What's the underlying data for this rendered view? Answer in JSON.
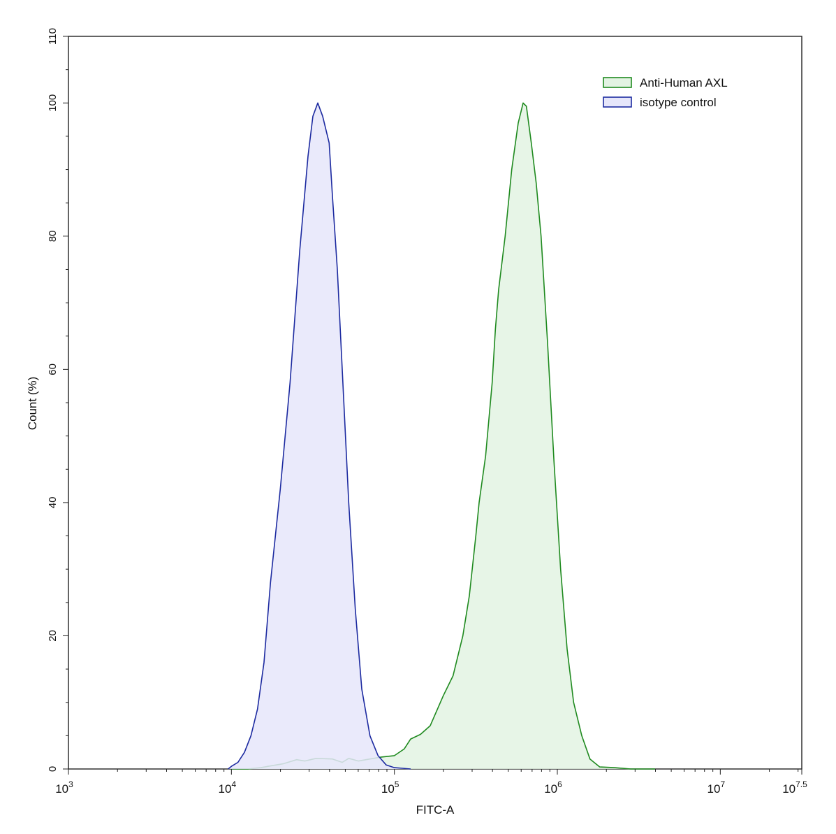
{
  "chart_data": {
    "type": "area",
    "title": "",
    "xlabel": "FITC-A",
    "ylabel": "Count  (%)",
    "x_scale": "log10",
    "xlim": [
      3,
      7.5
    ],
    "ylim": [
      0,
      110
    ],
    "x_ticks": [
      {
        "base": "10",
        "exp": "3",
        "value": 3
      },
      {
        "base": "10",
        "exp": "4",
        "value": 4
      },
      {
        "base": "10",
        "exp": "5",
        "value": 5
      },
      {
        "base": "10",
        "exp": "6",
        "value": 6
      },
      {
        "base": "10",
        "exp": "7",
        "value": 7
      },
      {
        "base": "10",
        "exp": "7.5",
        "value": 7.5
      }
    ],
    "y_ticks": [
      "0",
      "20",
      "40",
      "60",
      "80",
      "100",
      "110"
    ],
    "legend_position": "top-right",
    "grid": false,
    "series": [
      {
        "name": "Anti-Human AXL",
        "stroke": "#1f8a1f",
        "fill": "#e3f3e3",
        "points": [
          [
            4.0,
            0
          ],
          [
            4.1,
            0
          ],
          [
            4.18,
            0.2
          ],
          [
            4.25,
            0.5
          ],
          [
            4.32,
            0.8
          ],
          [
            4.4,
            1.4
          ],
          [
            4.45,
            1.2
          ],
          [
            4.52,
            1.6
          ],
          [
            4.62,
            1.5
          ],
          [
            4.68,
            1.0
          ],
          [
            4.72,
            1.6
          ],
          [
            4.78,
            1.2
          ],
          [
            4.85,
            1.5
          ],
          [
            4.92,
            1.8
          ],
          [
            5.0,
            2.0
          ],
          [
            5.06,
            3.0
          ],
          [
            5.1,
            4.5
          ],
          [
            5.16,
            5.2
          ],
          [
            5.22,
            6.5
          ],
          [
            5.3,
            11
          ],
          [
            5.36,
            14
          ],
          [
            5.42,
            20
          ],
          [
            5.46,
            26
          ],
          [
            5.5,
            35
          ],
          [
            5.52,
            40
          ],
          [
            5.56,
            47
          ],
          [
            5.6,
            58
          ],
          [
            5.62,
            66
          ],
          [
            5.64,
            72
          ],
          [
            5.68,
            80
          ],
          [
            5.72,
            90
          ],
          [
            5.76,
            97
          ],
          [
            5.79,
            100
          ],
          [
            5.81,
            99.5
          ],
          [
            5.84,
            94
          ],
          [
            5.87,
            88
          ],
          [
            5.9,
            80
          ],
          [
            5.94,
            64
          ],
          [
            5.98,
            46
          ],
          [
            6.02,
            30
          ],
          [
            6.06,
            18
          ],
          [
            6.1,
            10
          ],
          [
            6.15,
            5
          ],
          [
            6.2,
            1.5
          ],
          [
            6.26,
            0.3
          ],
          [
            6.35,
            0.2
          ],
          [
            6.45,
            0
          ],
          [
            6.6,
            0
          ]
        ]
      },
      {
        "name": "isotype control",
        "stroke": "#1c2aa0",
        "fill": "#e6e6fa",
        "points": [
          [
            3.98,
            0
          ],
          [
            4.0,
            0.4
          ],
          [
            4.04,
            1.0
          ],
          [
            4.08,
            2.5
          ],
          [
            4.12,
            5
          ],
          [
            4.16,
            9
          ],
          [
            4.2,
            16
          ],
          [
            4.24,
            28
          ],
          [
            4.3,
            42
          ],
          [
            4.36,
            58
          ],
          [
            4.42,
            78
          ],
          [
            4.47,
            92
          ],
          [
            4.5,
            98
          ],
          [
            4.53,
            100
          ],
          [
            4.56,
            98
          ],
          [
            4.6,
            94
          ],
          [
            4.62,
            86
          ],
          [
            4.65,
            75
          ],
          [
            4.68,
            60
          ],
          [
            4.72,
            40
          ],
          [
            4.76,
            24
          ],
          [
            4.8,
            12
          ],
          [
            4.85,
            5
          ],
          [
            4.9,
            2
          ],
          [
            4.95,
            0.6
          ],
          [
            5.0,
            0.2
          ],
          [
            5.05,
            0.1
          ],
          [
            5.1,
            0
          ]
        ]
      }
    ]
  }
}
